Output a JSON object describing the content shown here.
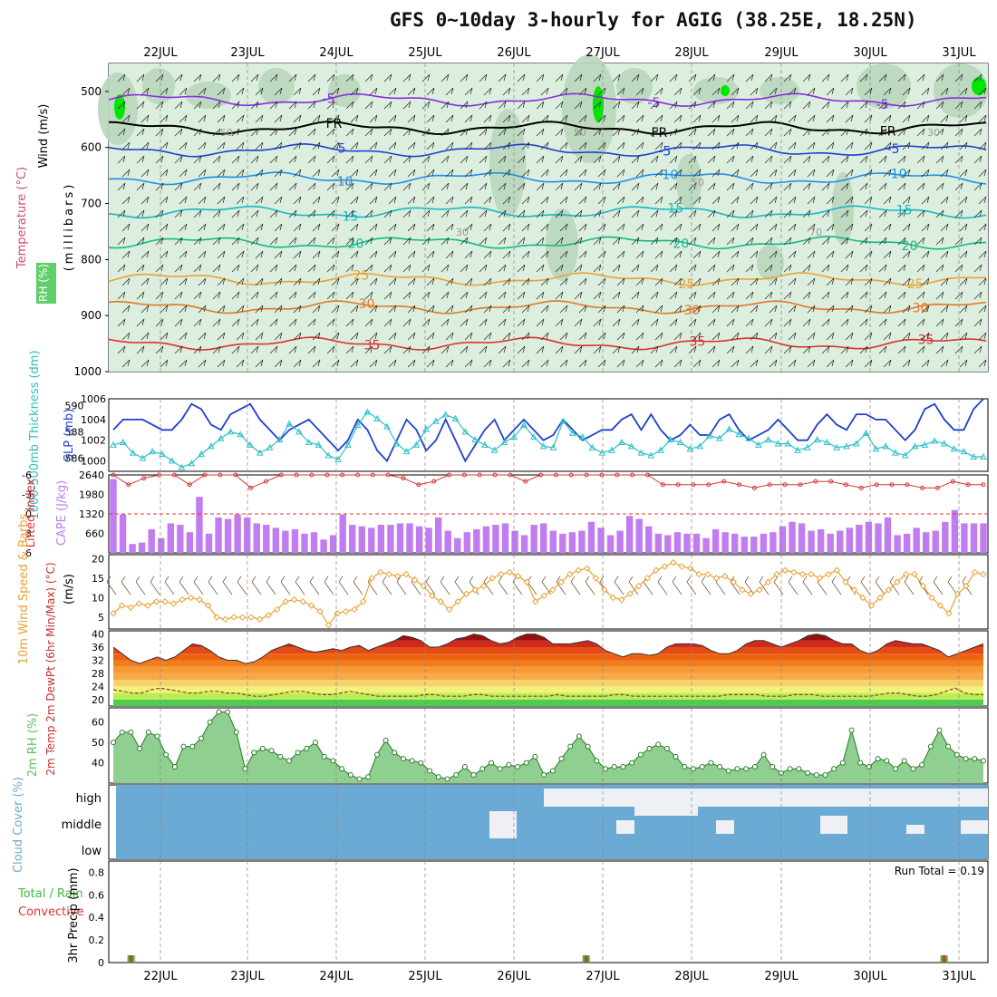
{
  "title": "GFS 0~10day 3-hourly for AGIG (38.25E, 18.25N)",
  "dates": [
    "22JUL",
    "23JUL",
    "24JUL",
    "25JUL",
    "26JUL",
    "27JUL",
    "28JUL",
    "29JUL",
    "30JUL",
    "31JUL"
  ],
  "colors": {
    "axis": "#000000",
    "grid": "#888888",
    "rh_fill": "#dceedd",
    "rh_mid": "#b9d6bb",
    "rh_hi": "#5fcf6a",
    "rh_max": "#00e600",
    "slp": "#1f3fd0",
    "thick": "#2bbfc7",
    "li": "#d93434",
    "cape": "#c07cf0",
    "wspd": "#e8a234",
    "barb": "#7a5a40",
    "rh2m": "#57c46a",
    "cloud": "#6aaad4",
    "precip_total": "#3cbf3c",
    "precip_conv": "#e23030"
  },
  "chart_data": [
    {
      "id": "upper-air",
      "type": "heatmap",
      "ylabel_wind": "Wind (m/s)",
      "ylabel_temp": "Temperature (°C)",
      "ylabel_units": "(millibars)",
      "legend_rh": "RH (%)",
      "yticks": [
        500,
        600,
        700,
        800,
        900,
        1000
      ],
      "ylim": [
        450,
        1000
      ],
      "isotherms": [
        {
          "label": "-5",
          "level": 515,
          "color": "#8a2be2"
        },
        {
          "label": "FR",
          "level": 565,
          "color": "#000000"
        },
        {
          "label": "-5",
          "level": 605,
          "color": "#1f3fd0"
        },
        {
          "label": "10",
          "level": 655,
          "color": "#1e90e8"
        },
        {
          "label": "15",
          "level": 715,
          "color": "#19b6c8"
        },
        {
          "label": "20",
          "level": 770,
          "color": "#11b989"
        },
        {
          "label": "25",
          "level": 835,
          "color": "#e8a234"
        },
        {
          "label": "30",
          "level": 885,
          "color": "#e07828"
        },
        {
          "label": "35",
          "level": 950,
          "color": "#dd3030"
        }
      ],
      "rh_labels": [
        "50",
        "30",
        "30",
        "50",
        "50",
        "70",
        "30"
      ]
    },
    {
      "id": "slp-thickness",
      "type": "line",
      "ylabel_left": "1000-500mb Thickness (dm)",
      "ylabel_right": "SLP (mb)",
      "yticks_left": [
        586,
        588,
        590
      ],
      "yticks_right": [
        1000,
        1002,
        1004,
        1006
      ],
      "ylim_left": [
        585,
        590.5
      ],
      "ylim_right": [
        999,
        1006
      ],
      "series": [
        {
          "name": "SLP (mb)",
          "values": [
            1003,
            1004,
            1004,
            1004,
            1003.5,
            1003,
            1003,
            1004,
            1005.5,
            1005,
            1003.5,
            1003,
            1004.5,
            1005,
            1005.5,
            1004,
            1003,
            1002,
            1003,
            1003.5,
            1004,
            1003,
            1002,
            1001,
            1002,
            1004,
            1003,
            1001,
            1000,
            1002,
            1004,
            1003,
            1001,
            1002,
            1004,
            1002,
            1000,
            1001.5,
            1003,
            1004,
            1002,
            1003,
            1004,
            1003,
            1002,
            1002.5,
            1004,
            1003,
            1002,
            1002.5,
            1003,
            1003,
            1004,
            1004.5,
            1003,
            1004.5,
            1003,
            1002,
            1002.5,
            1003.5,
            1002.5,
            1002.5,
            1004,
            1004.5,
            1003,
            1002,
            1002.5,
            1003,
            1004,
            1003,
            1002,
            1002,
            1003.5,
            1004.5,
            1003.5,
            1003,
            1004.5,
            1004.5,
            1004,
            1004,
            1003,
            1002,
            1003,
            1005,
            1005.5,
            1004,
            1003,
            1003,
            1005,
            1006
          ]
        },
        {
          "name": "1000-500mb Thickness (dm)",
          "values": [
            587,
            587.2,
            586.4,
            586,
            586.5,
            586.3,
            585.8,
            585.3,
            585.6,
            586.3,
            586.9,
            587.5,
            588,
            587.8,
            587,
            586.4,
            586.8,
            587.4,
            588.6,
            588,
            587.2,
            587,
            586.2,
            585.9,
            587,
            588.5,
            589.5,
            589,
            588.4,
            587.1,
            586.5,
            587,
            588.2,
            588.8,
            589.3,
            589,
            588,
            587.4,
            587,
            586.6,
            587.2,
            587.6,
            588.5,
            587.6,
            586.9,
            586.8,
            588.8,
            587.9,
            587.6,
            586.8,
            586.4,
            586.6,
            587.2,
            586.9,
            586.4,
            586.2,
            586.6,
            587.4,
            587.2,
            586.7,
            586.9,
            587.7,
            587.5,
            588.2,
            587.8,
            587.5,
            587,
            587.4,
            587.1,
            587.1,
            586.6,
            586.8,
            587.4,
            587.2,
            586.8,
            586.9,
            587.1,
            587.9,
            586.7,
            586.9,
            586.4,
            586.2,
            586.9,
            587,
            587.3,
            587.1,
            586.7,
            586.5,
            586.1,
            586.1
          ]
        }
      ]
    },
    {
      "id": "cape-li",
      "type": "bar",
      "ylabel_left": "Lifted Index",
      "ylabel_right": "CAPE (J/kg)",
      "yticks_left": [
        -6,
        -3,
        0,
        3,
        6
      ],
      "yticks_right": [
        660,
        1320,
        1980,
        2640
      ],
      "ylim_right": [
        0,
        2640
      ],
      "series": [
        {
          "name": "CAPE (J/kg)",
          "values": [
            2500,
            1300,
            300,
            350,
            800,
            500,
            1000,
            950,
            700,
            1900,
            650,
            1200,
            1150,
            1300,
            1200,
            1000,
            950,
            850,
            750,
            800,
            650,
            700,
            450,
            600,
            1300,
            950,
            900,
            850,
            950,
            950,
            1000,
            1000,
            900,
            850,
            1200,
            750,
            500,
            700,
            800,
            900,
            950,
            1000,
            750,
            600,
            950,
            1000,
            750,
            650,
            700,
            750,
            1050,
            850,
            600,
            750,
            1250,
            1150,
            900,
            650,
            600,
            700,
            650,
            650,
            500,
            800,
            700,
            650,
            550,
            550,
            650,
            700,
            900,
            1050,
            1000,
            750,
            800,
            650,
            750,
            850,
            950,
            1050,
            1000,
            1200,
            600,
            650,
            850,
            700,
            750,
            1050,
            1450,
            1000,
            1000,
            1000
          ]
        },
        {
          "name": "Lifted Index",
          "values": [
            -6,
            -4.5,
            -5.5,
            -6,
            -6,
            -4.5,
            -6,
            -6,
            -6,
            -4,
            -5,
            -6,
            -6,
            -6,
            -6,
            -6,
            -6,
            -6,
            -6,
            -5.5,
            -4.5,
            -5,
            -6,
            -6,
            -6,
            -6,
            -6,
            -5,
            -6,
            -6,
            -6,
            -6,
            -6,
            -6,
            -6,
            -6,
            -4.5,
            -4.5,
            -4.5,
            -4.5,
            -5,
            -4.5,
            -4,
            -4.5,
            -4.5,
            -4.5,
            -5,
            -5,
            -4.5,
            -4,
            -4.5,
            -4.5,
            -4.5,
            -4,
            -4,
            -5,
            -4.5,
            -4.5
          ]
        }
      ]
    },
    {
      "id": "wind-10m",
      "type": "line",
      "ylabel_left": "10m Wind Speed & Barbs",
      "ylabel_right": "(m/s)",
      "yticks": [
        5,
        10,
        15,
        20
      ],
      "ylim": [
        2,
        21
      ],
      "series": [
        {
          "name": "10m Wind Speed",
          "values": [
            6,
            8,
            7.5,
            8.5,
            8,
            9,
            9,
            8.5,
            9.5,
            10,
            9.5,
            8,
            5,
            4.5,
            5,
            5,
            5,
            4.5,
            5.5,
            7,
            9,
            9.5,
            9,
            8,
            6.5,
            3,
            6,
            6.5,
            7,
            9,
            15,
            16.5,
            16,
            15.5,
            16,
            14.5,
            13,
            10.5,
            9,
            7,
            9,
            11,
            12,
            13,
            15,
            16,
            16.5,
            15.5,
            14,
            9,
            10.5,
            12,
            14,
            16,
            17,
            17.5,
            15,
            12,
            10,
            9.5,
            11,
            13,
            15,
            17,
            18,
            19,
            18,
            17.5,
            16,
            16,
            15,
            15.5,
            14,
            12,
            11,
            12,
            14,
            16,
            17,
            16.5,
            16,
            16,
            15,
            16,
            17,
            14,
            12,
            10,
            8,
            10,
            12,
            14,
            16,
            16,
            13,
            10,
            8,
            6,
            11,
            13,
            16.5,
            16
          ]
        }
      ]
    },
    {
      "id": "temp-2m",
      "type": "area",
      "ylabel": "2m Temp 2m DewPt (6hr Min/Max) (°C)",
      "yticks": [
        20,
        24,
        28,
        32,
        36,
        40
      ],
      "ylim": [
        18,
        41
      ],
      "series": [
        {
          "name": "2m Temp",
          "values": [
            36,
            34,
            32,
            31,
            32,
            33,
            32,
            33,
            35,
            37,
            36.5,
            35,
            33,
            32,
            32,
            31,
            31.5,
            33,
            35,
            36,
            37,
            36,
            35,
            34.5,
            35,
            35.5,
            35,
            36,
            36.5,
            35,
            36,
            37,
            38,
            39.5,
            39,
            38,
            36,
            36,
            37,
            38.5,
            39,
            40,
            39.5,
            38,
            37,
            37.5,
            39,
            40,
            40,
            39,
            37,
            37,
            37,
            37.5,
            38,
            37,
            35,
            34,
            33,
            34,
            34,
            33.5,
            34,
            36,
            37,
            37,
            37,
            36.5,
            35,
            34,
            34,
            35,
            37,
            38,
            38,
            37,
            36,
            37,
            38,
            39.5,
            40,
            39.5,
            38,
            37,
            37,
            35,
            34,
            35,
            37,
            38,
            37.5,
            37,
            37,
            36,
            35,
            33,
            34,
            35,
            36,
            37
          ]
        },
        {
          "name": "2m DewPt",
          "values": [
            23,
            22.5,
            22,
            22,
            23,
            23.5,
            23,
            22.5,
            22,
            22,
            22.5,
            22.5,
            22,
            22,
            21.5,
            21,
            21,
            21.5,
            22,
            22.5,
            22.5,
            22,
            21.5,
            21.5,
            22,
            22.5,
            22,
            21.5,
            21,
            21,
            21,
            21,
            21,
            21.5,
            21.5,
            21,
            21,
            21,
            21.5,
            21.5,
            21,
            21,
            21,
            21,
            21,
            21,
            21,
            21.5,
            21,
            21,
            21,
            21,
            21,
            21.5,
            21.5,
            21,
            21,
            21,
            21,
            21,
            21,
            21,
            21,
            21,
            21,
            21.5,
            21.5,
            21.5,
            21.5,
            21,
            21,
            21,
            21.5,
            21.5,
            21.5,
            21,
            21,
            21,
            21,
            21,
            21,
            21.5,
            22,
            22,
            21.5,
            21,
            21,
            21.5,
            22.5,
            23.5,
            22,
            21.5,
            21.5
          ]
        }
      ]
    },
    {
      "id": "rh-2m",
      "type": "area",
      "ylabel": "2m RH (%)",
      "yticks": [
        40,
        50,
        60
      ],
      "ylim": [
        30,
        67
      ],
      "series": [
        {
          "name": "2m RH",
          "values": [
            50,
            55,
            55,
            47,
            55,
            53,
            44,
            38,
            48,
            48,
            52,
            60,
            65,
            65,
            55,
            37,
            45,
            47,
            46,
            43,
            41,
            45,
            47,
            50,
            43,
            41,
            37,
            34,
            32,
            33,
            44,
            51,
            45,
            42,
            41,
            40,
            36,
            33,
            32,
            34,
            38,
            34,
            37,
            40,
            37,
            39,
            38,
            40,
            43,
            34,
            36,
            42,
            48,
            53,
            48,
            41,
            37,
            38,
            38,
            40,
            44,
            47,
            49,
            47,
            43,
            38,
            37,
            38,
            40,
            38,
            36,
            37,
            37,
            38,
            44,
            38,
            35,
            37,
            37,
            35,
            34,
            34,
            37,
            40,
            56,
            40,
            38,
            42,
            41,
            37,
            41,
            37,
            39,
            48,
            56,
            48,
            44,
            42,
            42,
            41
          ]
        }
      ]
    },
    {
      "id": "cloud-cover",
      "type": "heatmap",
      "ylabel": "Cloud Cover (%)",
      "levels": [
        "high",
        "middle",
        "low"
      ]
    },
    {
      "id": "precip-3hr",
      "type": "bar",
      "ylabel_left": "Total / Rain",
      "ylabel_right": "Convective",
      "ylabel_axis": "3hr Precip (mm)",
      "yticks": [
        0,
        0.2,
        0.4,
        0.6,
        0.8
      ],
      "ylim": [
        0,
        0.9
      ],
      "run_total_label": "Run Total = 0.19",
      "series": [
        {
          "name": "Total",
          "values": [
            0.03,
            0.03,
            0.03
          ]
        }
      ],
      "event_days": [
        0.15,
        5.3,
        9.35
      ]
    }
  ]
}
